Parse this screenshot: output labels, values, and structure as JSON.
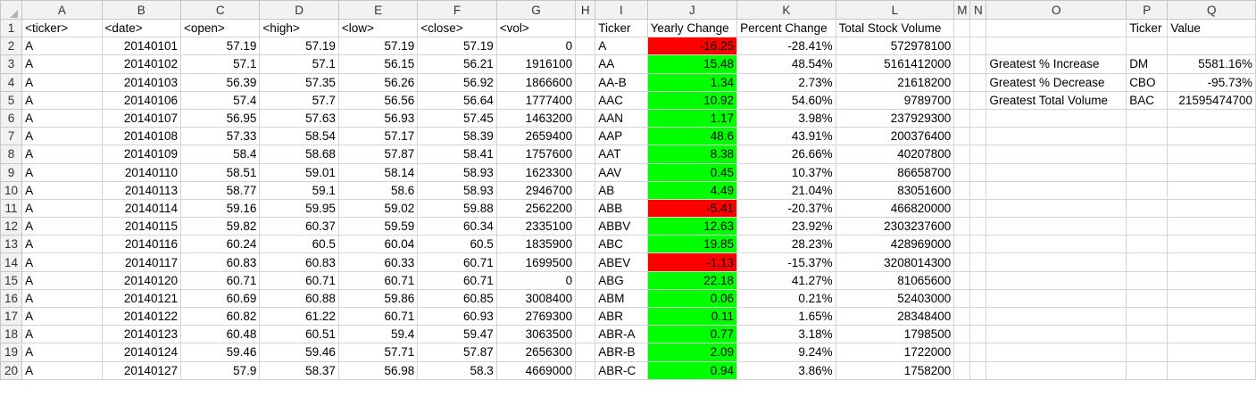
{
  "columns": [
    "A",
    "B",
    "C",
    "D",
    "E",
    "F",
    "G",
    "H",
    "I",
    "J",
    "K",
    "L",
    "M",
    "N",
    "O",
    "P",
    "Q"
  ],
  "rows": [
    [
      "<ticker>",
      "<date>",
      "<open>",
      "<high>",
      "<low>",
      "<close>",
      "<vol>",
      "",
      "Ticker",
      "Yearly Change",
      "Percent Change",
      "Total Stock Volume",
      "",
      "",
      "",
      "Ticker",
      "Value"
    ],
    [
      "A",
      "20140101",
      "57.19",
      "57.19",
      "57.19",
      "57.19",
      "0",
      "",
      "A",
      "-16.25",
      "-28.41%",
      "572978100",
      "",
      "",
      "",
      "",
      ""
    ],
    [
      "A",
      "20140102",
      "57.1",
      "57.1",
      "56.15",
      "56.21",
      "1916100",
      "",
      "AA",
      "15.48",
      "48.54%",
      "5161412000",
      "",
      "",
      "Greatest % Increase",
      "DM",
      "5581.16%"
    ],
    [
      "A",
      "20140103",
      "56.39",
      "57.35",
      "56.26",
      "56.92",
      "1866600",
      "",
      "AA-B",
      "1.34",
      "2.73%",
      "21618200",
      "",
      "",
      "Greatest % Decrease",
      "CBO",
      "-95.73%"
    ],
    [
      "A",
      "20140106",
      "57.4",
      "57.7",
      "56.56",
      "56.64",
      "1777400",
      "",
      "AAC",
      "10.92",
      "54.60%",
      "9789700",
      "",
      "",
      "Greatest Total Volume",
      "BAC",
      "21595474700"
    ],
    [
      "A",
      "20140107",
      "56.95",
      "57.63",
      "56.93",
      "57.45",
      "1463200",
      "",
      "AAN",
      "1.17",
      "3.98%",
      "237929300",
      "",
      "",
      "",
      "",
      ""
    ],
    [
      "A",
      "20140108",
      "57.33",
      "58.54",
      "57.17",
      "58.39",
      "2659400",
      "",
      "AAP",
      "48.6",
      "43.91%",
      "200376400",
      "",
      "",
      "",
      "",
      ""
    ],
    [
      "A",
      "20140109",
      "58.4",
      "58.68",
      "57.87",
      "58.41",
      "1757600",
      "",
      "AAT",
      "8.38",
      "26.66%",
      "40207800",
      "",
      "",
      "",
      "",
      ""
    ],
    [
      "A",
      "20140110",
      "58.51",
      "59.01",
      "58.14",
      "58.93",
      "1623300",
      "",
      "AAV",
      "0.45",
      "10.37%",
      "86658700",
      "",
      "",
      "",
      "",
      ""
    ],
    [
      "A",
      "20140113",
      "58.77",
      "59.1",
      "58.6",
      "58.93",
      "2946700",
      "",
      "AB",
      "4.49",
      "21.04%",
      "83051600",
      "",
      "",
      "",
      "",
      ""
    ],
    [
      "A",
      "20140114",
      "59.16",
      "59.95",
      "59.02",
      "59.88",
      "2562200",
      "",
      "ABB",
      "-5.41",
      "-20.37%",
      "466820000",
      "",
      "",
      "",
      "",
      ""
    ],
    [
      "A",
      "20140115",
      "59.82",
      "60.37",
      "59.59",
      "60.34",
      "2335100",
      "",
      "ABBV",
      "12.63",
      "23.92%",
      "2303237600",
      "",
      "",
      "",
      "",
      ""
    ],
    [
      "A",
      "20140116",
      "60.24",
      "60.5",
      "60.04",
      "60.5",
      "1835900",
      "",
      "ABC",
      "19.85",
      "28.23%",
      "428969000",
      "",
      "",
      "",
      "",
      ""
    ],
    [
      "A",
      "20140117",
      "60.83",
      "60.83",
      "60.33",
      "60.71",
      "1699500",
      "",
      "ABEV",
      "-1.13",
      "-15.37%",
      "3208014300",
      "",
      "",
      "",
      "",
      ""
    ],
    [
      "A",
      "20140120",
      "60.71",
      "60.71",
      "60.71",
      "60.71",
      "0",
      "",
      "ABG",
      "22.18",
      "41.27%",
      "81065600",
      "",
      "",
      "",
      "",
      ""
    ],
    [
      "A",
      "20140121",
      "60.69",
      "60.88",
      "59.86",
      "60.85",
      "3008400",
      "",
      "ABM",
      "0.06",
      "0.21%",
      "52403000",
      "",
      "",
      "",
      "",
      ""
    ],
    [
      "A",
      "20140122",
      "60.82",
      "61.22",
      "60.71",
      "60.93",
      "2769300",
      "",
      "ABR",
      "0.11",
      "1.65%",
      "28348400",
      "",
      "",
      "",
      "",
      ""
    ],
    [
      "A",
      "20140123",
      "60.48",
      "60.51",
      "59.4",
      "59.47",
      "3063500",
      "",
      "ABR-A",
      "0.77",
      "3.18%",
      "1798500",
      "",
      "",
      "",
      "",
      ""
    ],
    [
      "A",
      "20140124",
      "59.46",
      "59.46",
      "57.71",
      "57.87",
      "2656300",
      "",
      "ABR-B",
      "2.09",
      "9.24%",
      "1722000",
      "",
      "",
      "",
      "",
      ""
    ],
    [
      "A",
      "20140127",
      "57.9",
      "58.37",
      "56.98",
      "58.3",
      "4669000",
      "",
      "ABR-C",
      "0.94",
      "3.86%",
      "1758200",
      "",
      "",
      "",
      "",
      ""
    ]
  ],
  "colors": {
    "positive": "#00ff00",
    "negative": "#ff0000",
    "header_bg": "#f2f2f2",
    "gridline": "#d4d4d4"
  }
}
